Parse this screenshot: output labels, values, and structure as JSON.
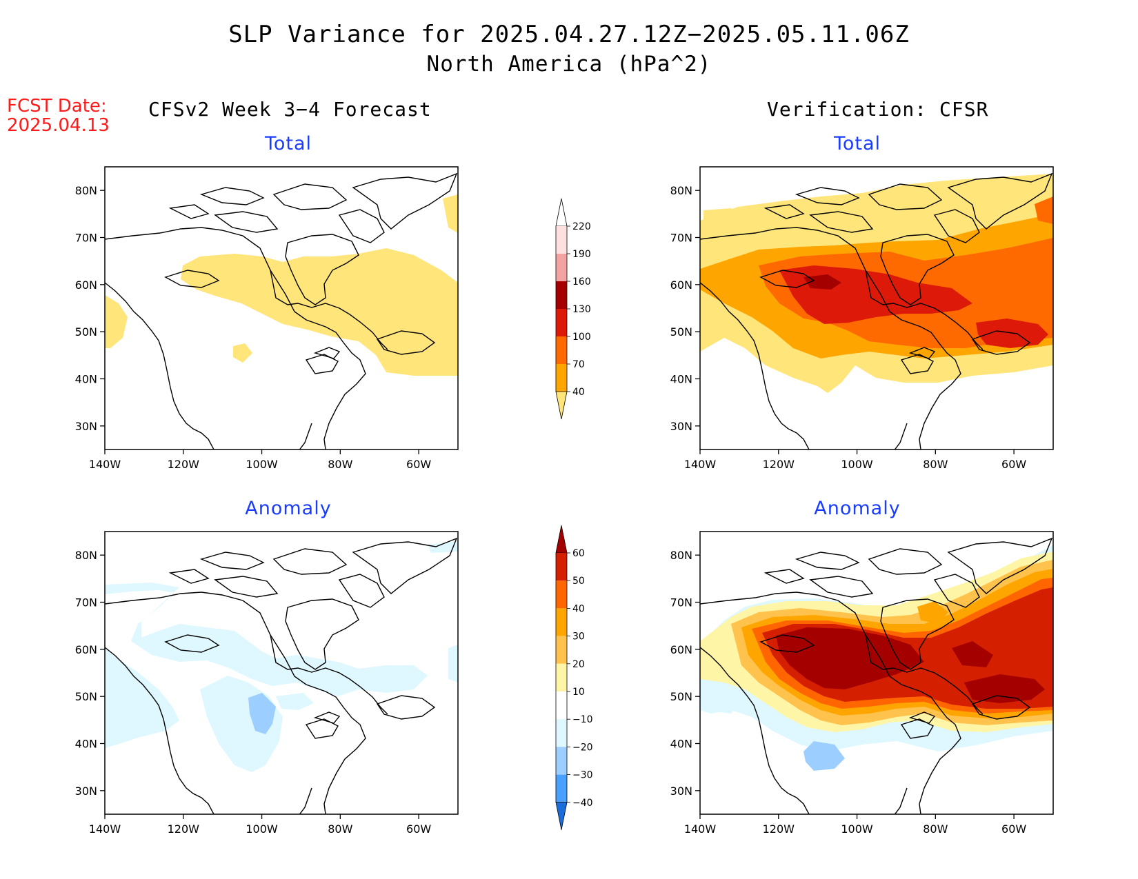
{
  "title": "SLP Variance for 2025.04.27.12Z−2025.05.11.06Z",
  "subtitle": "North America (hPa^2)",
  "fcst_date_label": "FCST Date:",
  "fcst_date_value": "2025.04.13",
  "column_headers": {
    "left": "CFSv2 Week 3−4 Forecast",
    "right": "Verification: CFSR"
  },
  "panels": {
    "fcst_total": {
      "title": "Total"
    },
    "verif_total": {
      "title": "Total"
    },
    "fcst_anomaly": {
      "title": "Anomaly"
    },
    "verif_anomaly": {
      "title": "Anomaly"
    }
  },
  "axes": {
    "lon_ticks": [
      "140W",
      "120W",
      "100W",
      "80W",
      "60W"
    ],
    "lat_ticks": [
      "80N",
      "70N",
      "60N",
      "50N",
      "40N",
      "30N"
    ]
  },
  "colorbar_total": {
    "labels": [
      "220",
      "190",
      "160",
      "130",
      "100",
      "70",
      "40"
    ],
    "colors": [
      "#ffffff",
      "#ffe0e0",
      "#f4a3a3",
      "#a50000",
      "#dd1a0a",
      "#ff6a00",
      "#ffa500",
      "#ffe57a"
    ]
  },
  "colorbar_anomaly": {
    "labels": [
      "60",
      "50",
      "40",
      "30",
      "20",
      "10",
      "−10",
      "−20",
      "−30",
      "−40"
    ],
    "colors": [
      "#a50000",
      "#d42000",
      "#ff6600",
      "#ffa500",
      "#ffc34d",
      "#fff5a6",
      "#ffffff",
      "#dff7ff",
      "#9ccfff",
      "#4aa0ff",
      "#1a6edc"
    ]
  }
}
